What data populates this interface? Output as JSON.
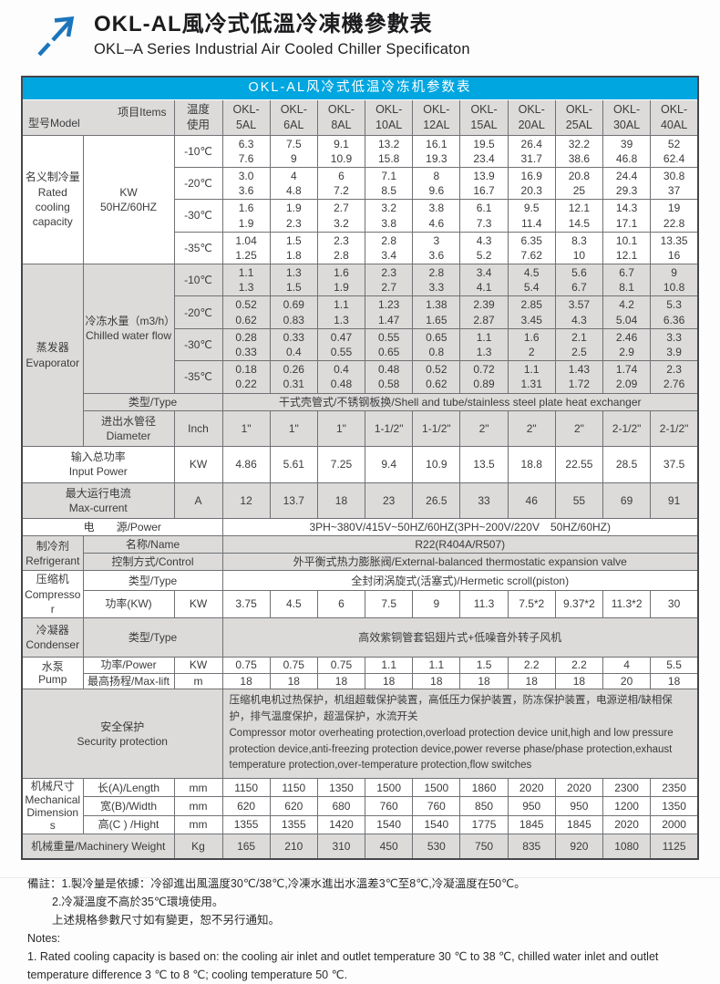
{
  "masthead": {
    "title_zh": "OKL-AL風冷式低溫冷凍機參數表",
    "title_en": "OKL–A Series Industrial Air Cooled Chiller Specificaton",
    "arrow_color": "#1b75bc"
  },
  "colors": {
    "band_blue": "#00a6e0",
    "shade_gray": "#dcdbd9",
    "border": "#46474b"
  },
  "table": {
    "corner": {
      "model": "型号Model",
      "items": "项目Items"
    },
    "rows": [
      {
        "kind": "band",
        "text": "OKL-AL风冷式低温冷冻机参数表"
      },
      {
        "shade": true,
        "cells": [
          {
            "kind": "corner",
            "colspan": 2
          },
          {
            "kind": "head",
            "lines": [
              "温度",
              "使用"
            ]
          },
          {
            "kind": "head",
            "lines": [
              "OKL-",
              "5AL"
            ]
          },
          {
            "kind": "head",
            "lines": [
              "OKL-",
              "6AL"
            ]
          },
          {
            "kind": "head",
            "lines": [
              "OKL-",
              "8AL"
            ]
          },
          {
            "kind": "head",
            "lines": [
              "OKL-",
              "10AL"
            ]
          },
          {
            "kind": "head",
            "lines": [
              "OKL-",
              "12AL"
            ]
          },
          {
            "kind": "head",
            "lines": [
              "OKL-",
              "15AL"
            ]
          },
          {
            "kind": "head",
            "lines": [
              "OKL-",
              "20AL"
            ]
          },
          {
            "kind": "head",
            "lines": [
              "OKL-",
              "25AL"
            ]
          },
          {
            "kind": "head",
            "lines": [
              "OKL-",
              "30AL"
            ]
          },
          {
            "kind": "head",
            "lines": [
              "OKL-",
              "40AL"
            ]
          }
        ]
      },
      {
        "cells": [
          {
            "kind": "group",
            "rowspan": 4,
            "lines": [
              "名义制冷量",
              "Rated",
              "cooling",
              "capacity"
            ]
          },
          {
            "kind": "item",
            "rowspan": 4,
            "lines": [
              "KW",
              "50HZ/60HZ"
            ]
          },
          {
            "kind": "unit",
            "text": "-10℃"
          },
          [
            "6.3",
            "7.6"
          ],
          [
            "7.5",
            "9"
          ],
          [
            "9.1",
            "10.9"
          ],
          [
            "13.2",
            "15.8"
          ],
          [
            "16.1",
            "19.3"
          ],
          [
            "19.5",
            "23.4"
          ],
          [
            "26.4",
            "31.7"
          ],
          [
            "32.2",
            "38.6"
          ],
          [
            "39",
            "46.8"
          ],
          [
            "52",
            "62.4"
          ]
        ]
      },
      {
        "cells": [
          {
            "kind": "unit",
            "text": "-20℃"
          },
          [
            "3.0",
            "3.6"
          ],
          [
            "4",
            "4.8"
          ],
          [
            "6",
            "7.2"
          ],
          [
            "7.1",
            "8.5"
          ],
          [
            "8",
            "9.6"
          ],
          [
            "13.9",
            "16.7"
          ],
          [
            "16.9",
            "20.3"
          ],
          [
            "20.8",
            "25"
          ],
          [
            "24.4",
            "29.3"
          ],
          [
            "30.8",
            "37"
          ]
        ]
      },
      {
        "cells": [
          {
            "kind": "unit",
            "text": "-30℃"
          },
          [
            "1.6",
            "1.9"
          ],
          [
            "1.9",
            "2.3"
          ],
          [
            "2.7",
            "3.2"
          ],
          [
            "3.2",
            "3.8"
          ],
          [
            "3.8",
            "4.6"
          ],
          [
            "6.1",
            "7.3"
          ],
          [
            "9.5",
            "11.4"
          ],
          [
            "12.1",
            "14.5"
          ],
          [
            "14.3",
            "17.1"
          ],
          [
            "19",
            "22.8"
          ]
        ]
      },
      {
        "cells": [
          {
            "kind": "unit",
            "text": "-35℃"
          },
          [
            "1.04",
            "1.25"
          ],
          [
            "1.5",
            "1.8"
          ],
          [
            "2.3",
            "2.8"
          ],
          [
            "2.8",
            "3.4"
          ],
          [
            "3",
            "3.6"
          ],
          [
            "4.3",
            "5.2"
          ],
          [
            "6.35",
            "7.62"
          ],
          [
            "8.3",
            "10"
          ],
          [
            "10.1",
            "12.1"
          ],
          [
            "13.35",
            "16"
          ]
        ]
      },
      {
        "shade": true,
        "cells": [
          {
            "kind": "group",
            "rowspan": 6,
            "lines": [
              "蒸发器",
              "Evaporator"
            ]
          },
          {
            "kind": "item",
            "rowspan": 4,
            "lines": [
              "冷冻水量（m3/h）",
              "Chilled water flow"
            ]
          },
          {
            "kind": "unit",
            "text": "-10℃"
          },
          [
            "1.1",
            "1.3"
          ],
          [
            "1.3",
            "1.5"
          ],
          [
            "1.6",
            "1.9"
          ],
          [
            "2.3",
            "2.7"
          ],
          [
            "2.8",
            "3.3"
          ],
          [
            "3.4",
            "4.1"
          ],
          [
            "4.5",
            "5.4"
          ],
          [
            "5.6",
            "6.7"
          ],
          [
            "6.7",
            "8.1"
          ],
          [
            "9",
            "10.8"
          ]
        ]
      },
      {
        "shade": true,
        "cells": [
          {
            "kind": "unit",
            "text": "-20℃"
          },
          [
            "0.52",
            "0.62"
          ],
          [
            "0.69",
            "0.83"
          ],
          [
            "1.1",
            "1.3"
          ],
          [
            "1.23",
            "1.47"
          ],
          [
            "1.38",
            "1.65"
          ],
          [
            "2.39",
            "2.87"
          ],
          [
            "2.85",
            "3.45"
          ],
          [
            "3.57",
            "4.3"
          ],
          [
            "4.2",
            "5.04"
          ],
          [
            "5.3",
            "6.36"
          ]
        ]
      },
      {
        "shade": true,
        "cells": [
          {
            "kind": "unit",
            "text": "-30℃"
          },
          [
            "0.28",
            "0.33"
          ],
          [
            "0.33",
            "0.4"
          ],
          [
            "0.47",
            "0.55"
          ],
          [
            "0.55",
            "0.65"
          ],
          [
            "0.65",
            "0.8"
          ],
          [
            "1.1",
            "1.3"
          ],
          [
            "1.6",
            "2"
          ],
          [
            "2.1",
            "2.5"
          ],
          [
            "2.46",
            "2.9"
          ],
          [
            "3.3",
            "3.9"
          ]
        ]
      },
      {
        "shade": true,
        "cells": [
          {
            "kind": "unit",
            "text": "-35℃"
          },
          [
            "0.18",
            "0.22"
          ],
          [
            "0.26",
            "0.31"
          ],
          [
            "0.4",
            "0.48"
          ],
          [
            "0.48",
            "0.58"
          ],
          [
            "0.52",
            "0.62"
          ],
          [
            "0.72",
            "0.89"
          ],
          [
            "1.1",
            "1.31"
          ],
          [
            "1.43",
            "1.72"
          ],
          [
            "1.74",
            "2.09"
          ],
          [
            "2.3",
            "2.76"
          ]
        ]
      },
      {
        "shade": true,
        "cells": [
          {
            "kind": "item",
            "colspan": 2,
            "text": "类型/Type"
          },
          {
            "kind": "wide",
            "colspan": 10,
            "text": "干式壳管式/不锈钢板换/Shell and tube/stainless steel plate heat exchanger"
          }
        ]
      },
      {
        "shade": true,
        "style": "roomy",
        "cells": [
          {
            "kind": "item",
            "lines": [
              "进出水管径",
              "Diameter"
            ]
          },
          {
            "kind": "unit",
            "text": "Inch"
          },
          "1\"",
          "1\"",
          "1\"",
          "1-1/2\"",
          "1-1/2\"",
          "2\"",
          "2\"",
          "2\"",
          "2-1/2\"",
          "2-1/2\""
        ]
      },
      {
        "style": "roomy",
        "cells": [
          {
            "kind": "item",
            "colspan": 2,
            "lines": [
              "输入总功率",
              "Input Power"
            ]
          },
          {
            "kind": "unit",
            "text": "KW"
          },
          "4.86",
          "5.61",
          "7.25",
          "9.4",
          "10.9",
          "13.5",
          "18.8",
          "22.55",
          "28.5",
          "37.5"
        ]
      },
      {
        "shade": true,
        "style": "roomy",
        "cells": [
          {
            "kind": "item",
            "colspan": 2,
            "lines": [
              "最大运行电流",
              "Max-current"
            ]
          },
          {
            "kind": "unit",
            "text": "A"
          },
          "12",
          "13.7",
          "18",
          "23",
          "26.5",
          "33",
          "46",
          "55",
          "69",
          "91"
        ]
      },
      {
        "cells": [
          {
            "kind": "item",
            "colspan": 3,
            "text": "电　　源/Power"
          },
          {
            "kind": "wide",
            "colspan": 10,
            "text": "3PH~380V/415V~50HZ/60HZ(3PH~200V/220V　50HZ/60HZ)"
          }
        ]
      },
      {
        "shade": true,
        "cells": [
          {
            "kind": "group",
            "rowspan": 2,
            "lines": [
              "制冷剂",
              "Refrigerant"
            ]
          },
          {
            "kind": "item",
            "colspan": 2,
            "text": "名称/Name"
          },
          {
            "kind": "wide",
            "colspan": 10,
            "text": "R22(R404A/R507)"
          }
        ]
      },
      {
        "shade": true,
        "cells": [
          {
            "kind": "item",
            "colspan": 2,
            "text": "控制方式/Control"
          },
          {
            "kind": "wide",
            "colspan": 10,
            "text": "外平衡式热力膨胀阀/External-balanced thermostatic expansion valve"
          }
        ]
      },
      {
        "cells": [
          {
            "kind": "group",
            "rowspan": 2,
            "lines": [
              "压缩机",
              "Compressor"
            ]
          },
          {
            "kind": "item",
            "colspan": 2,
            "text": "类型/Type"
          },
          {
            "kind": "wide",
            "colspan": 10,
            "text": "全封闭涡旋式(活塞式)/Hermetic scroll(piston)"
          }
        ]
      },
      {
        "style": "tall",
        "cells": [
          {
            "kind": "item",
            "text": "功率(KW)"
          },
          {
            "kind": "unit",
            "text": "KW"
          },
          "3.75",
          "4.5",
          "6",
          "7.5",
          "9",
          "11.3",
          "7.5*2",
          "9.37*2",
          "11.3*2",
          "30"
        ]
      },
      {
        "shade": true,
        "style": "tall",
        "cells": [
          {
            "kind": "group",
            "lines": [
              "冷凝器",
              "Condenser"
            ]
          },
          {
            "kind": "item",
            "colspan": 2,
            "text": "类型/Type"
          },
          {
            "kind": "wide",
            "colspan": 10,
            "text": "高效紫铜管套铝翅片式+低噪音外转子风机"
          }
        ]
      },
      {
        "style": "compact",
        "cells": [
          {
            "kind": "group",
            "rowspan": 2,
            "lines": [
              "水泵",
              "Pump"
            ]
          },
          {
            "kind": "item",
            "text": "功率/Power"
          },
          {
            "kind": "unit",
            "text": "KW"
          },
          "0.75",
          "0.75",
          "0.75",
          "1.1",
          "1.1",
          "1.5",
          "2.2",
          "2.2",
          "4",
          "5.5"
        ]
      },
      {
        "style": "compact",
        "cells": [
          {
            "kind": "item",
            "text": "最高扬程/Max-lift"
          },
          {
            "kind": "unit",
            "text": "m"
          },
          "18",
          "18",
          "18",
          "18",
          "18",
          "18",
          "18",
          "18",
          "20",
          "18"
        ]
      },
      {
        "shade": true,
        "cells": [
          {
            "kind": "item",
            "colspan": 3,
            "lines": [
              "安全保护",
              "Security protection"
            ]
          },
          {
            "kind": "sec",
            "colspan": 10,
            "lines": [
              "压缩机电机过热保护，机组超载保护装置，高低压力保护装置，防冻保护装置，电源逆相/缺相保护，排气温度保护，超温保护，水流开关",
              " Compressor motor overheating protection,overload protection device unit,high and low pressure protection device,anti-freezing protection device,power reverse phase/phase protection,exhaust temperature protection,over-temperature protection,flow switches"
            ]
          }
        ]
      },
      {
        "style": "compact",
        "cells": [
          {
            "kind": "group",
            "rowspan": 3,
            "lines": [
              "机械尺寸",
              "Mechanical",
              "Dimensions"
            ]
          },
          {
            "kind": "item",
            "text": "长(A)/Length"
          },
          {
            "kind": "unit",
            "text": "mm"
          },
          "1150",
          "1150",
          "1350",
          "1500",
          "1500",
          "1860",
          "2020",
          "2020",
          "2300",
          "2350"
        ]
      },
      {
        "style": "compact",
        "cells": [
          {
            "kind": "item",
            "text": "宽(B)/Width"
          },
          {
            "kind": "unit",
            "text": "mm"
          },
          "620",
          "620",
          "680",
          "760",
          "760",
          "850",
          "950",
          "950",
          "1200",
          "1350"
        ]
      },
      {
        "style": "compact",
        "cells": [
          {
            "kind": "item",
            "text": "高(C ) /Hight"
          },
          {
            "kind": "unit",
            "text": "mm"
          },
          "1355",
          "1355",
          "1420",
          "1540",
          "1540",
          "1775",
          "1845",
          "1845",
          "2020",
          "2000"
        ]
      },
      {
        "shade": true,
        "style": "tall",
        "cells": [
          {
            "kind": "item",
            "colspan": 2,
            "text": "机械重量/Machinery Weight"
          },
          {
            "kind": "unit",
            "text": "Kg"
          },
          "165",
          "210",
          "310",
          "450",
          "530",
          "750",
          "835",
          "920",
          "1080",
          "1125"
        ]
      }
    ]
  },
  "notes": [
    "備註：1.製冷量是依據：冷卻進出風溫度30℃/38℃,冷凍水進出水溫差3℃至8℃,冷凝溫度在50℃。",
    "2.冷凝溫度不高於35℃環境使用。",
    "上述規格參數尺寸如有變更，恕不另行通知。",
    "Notes:",
    "1. Rated cooling capacity is based on: the cooling air inlet and outlet temperature 30 ℃ to 38 ℃, chilled water inlet and outlet temperature difference 3 ℃ to 8 ℃; cooling temperature 50 ℃."
  ]
}
